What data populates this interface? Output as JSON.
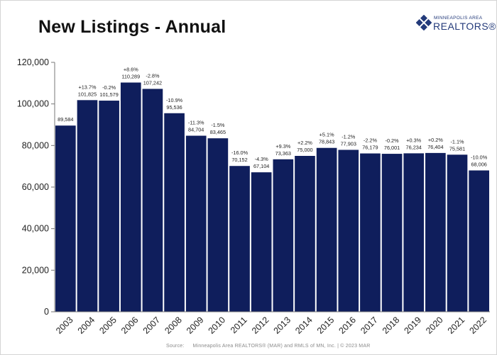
{
  "header": {
    "title": "New Listings - Annual"
  },
  "logo": {
    "top_text": "MINNEAPOLIS AREA",
    "main_text": "REALTORS®"
  },
  "footer": {
    "source_label": "Source:",
    "source_text": "Minneapolis Area REALTORS® (MAR) and RMLS of MN, Inc. | © 2023 MAR"
  },
  "colors": {
    "bar": "#0f1e5c",
    "axis": "#777777",
    "text": "#222222"
  },
  "chart_data": {
    "type": "bar",
    "title": "New Listings - Annual",
    "categories": [
      "2003",
      "2004",
      "2005",
      "2006",
      "2007",
      "2008",
      "2009",
      "2010",
      "2011",
      "2012",
      "2013",
      "2014",
      "2015",
      "2016",
      "2017",
      "2018",
      "2019",
      "2020",
      "2021",
      "2022"
    ],
    "values": [
      89584,
      101825,
      101579,
      110289,
      107242,
      95536,
      84704,
      83465,
      70152,
      67104,
      73363,
      75000,
      78843,
      77903,
      76179,
      76001,
      76234,
      76404,
      75581,
      68006
    ],
    "value_labels": [
      "89,584",
      "101,825",
      "101,579",
      "110,289",
      "107,242",
      "95,536",
      "84,704",
      "83,465",
      "70,152",
      "67,104",
      "73,363",
      "75,000",
      "78,843",
      "77,903",
      "76,179",
      "76,001",
      "76,234",
      "76,404",
      "75,581",
      "68,006"
    ],
    "change_labels": [
      "",
      "+13.7%",
      "-0.2%",
      "+8.6%",
      "-2.8%",
      "-10.9%",
      "-11.3%",
      "-1.5%",
      "-16.0%",
      "-4.3%",
      "+9.3%",
      "+2.2%",
      "+5.1%",
      "-1.2%",
      "-2.2%",
      "-0.2%",
      "+0.3%",
      "+0.2%",
      "-1.1%",
      "-10.0%"
    ],
    "y_ticks": [
      0,
      20000,
      40000,
      60000,
      80000,
      100000,
      120000
    ],
    "y_tick_labels": [
      "0",
      "20,000",
      "40,000",
      "60,000",
      "80,000",
      "100,000",
      "120,000"
    ],
    "ylim": [
      0,
      120000
    ],
    "xlabel": "",
    "ylabel": "",
    "grid": false,
    "legend": "none"
  }
}
